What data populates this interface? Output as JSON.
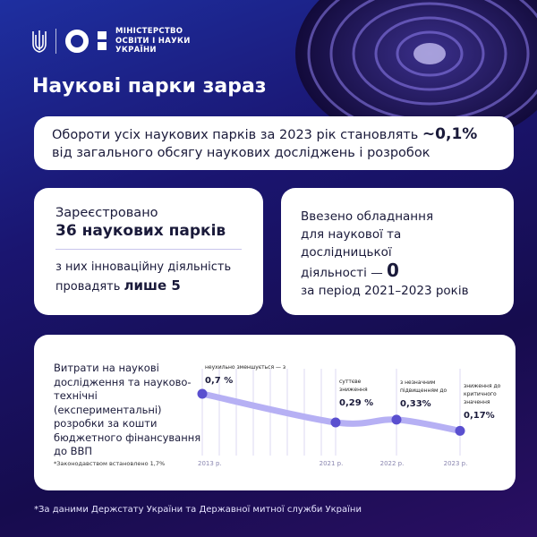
{
  "logo": {
    "line1": "МІНІСТЕРСТВО",
    "line2": "ОСВІТИ І НАУКИ",
    "line3": "УКРАЇНИ"
  },
  "title": "Наукові парки зараз",
  "turnover": {
    "text_before": "Обороти усіх наукових парків за 2023 рік становлять ",
    "value": "~0,1%",
    "text_after": " від загального обсягу наукових досліджень і розробок"
  },
  "registered": {
    "label": "Зареєстровано",
    "value": "36 наукових парків",
    "sub_before": "з них інноваційну діяльність провадять ",
    "sub_bold": "лише 5"
  },
  "equipment": {
    "line1": "Ввезено обладнання",
    "line2": "для наукової та дослідницької",
    "line3": "діяльності — ",
    "value": "0",
    "line4": "за період 2021–2023 років"
  },
  "spending": {
    "description": "Витрати на наукові дослідження та науково-технічні (експериментальні) розробки за кошти бюджетного фінансування до ВВП",
    "note": "*Законодавством встановлено 1,7%"
  },
  "chart_data": {
    "type": "line",
    "categories": [
      "2013 р.",
      "2021 р.",
      "2022 р.",
      "2023 р."
    ],
    "values": [
      0.7,
      0.29,
      0.33,
      0.17
    ],
    "unit": "% ВВП",
    "value_labels": [
      "0,7 %",
      "0,29 %",
      "0,33%",
      "0,17%"
    ],
    "annotations": [
      "неухильно зменшується — з",
      "суттєве зниження",
      "з незначним підвищенням до",
      "зниження до критичного значення"
    ],
    "grid": "vertical",
    "colors": {
      "line": "#b6b0f4",
      "point": "#5a4fcf",
      "grid": "#dddaf3"
    }
  },
  "footnote": "*За даними Держстату України та Державної митної служби України"
}
